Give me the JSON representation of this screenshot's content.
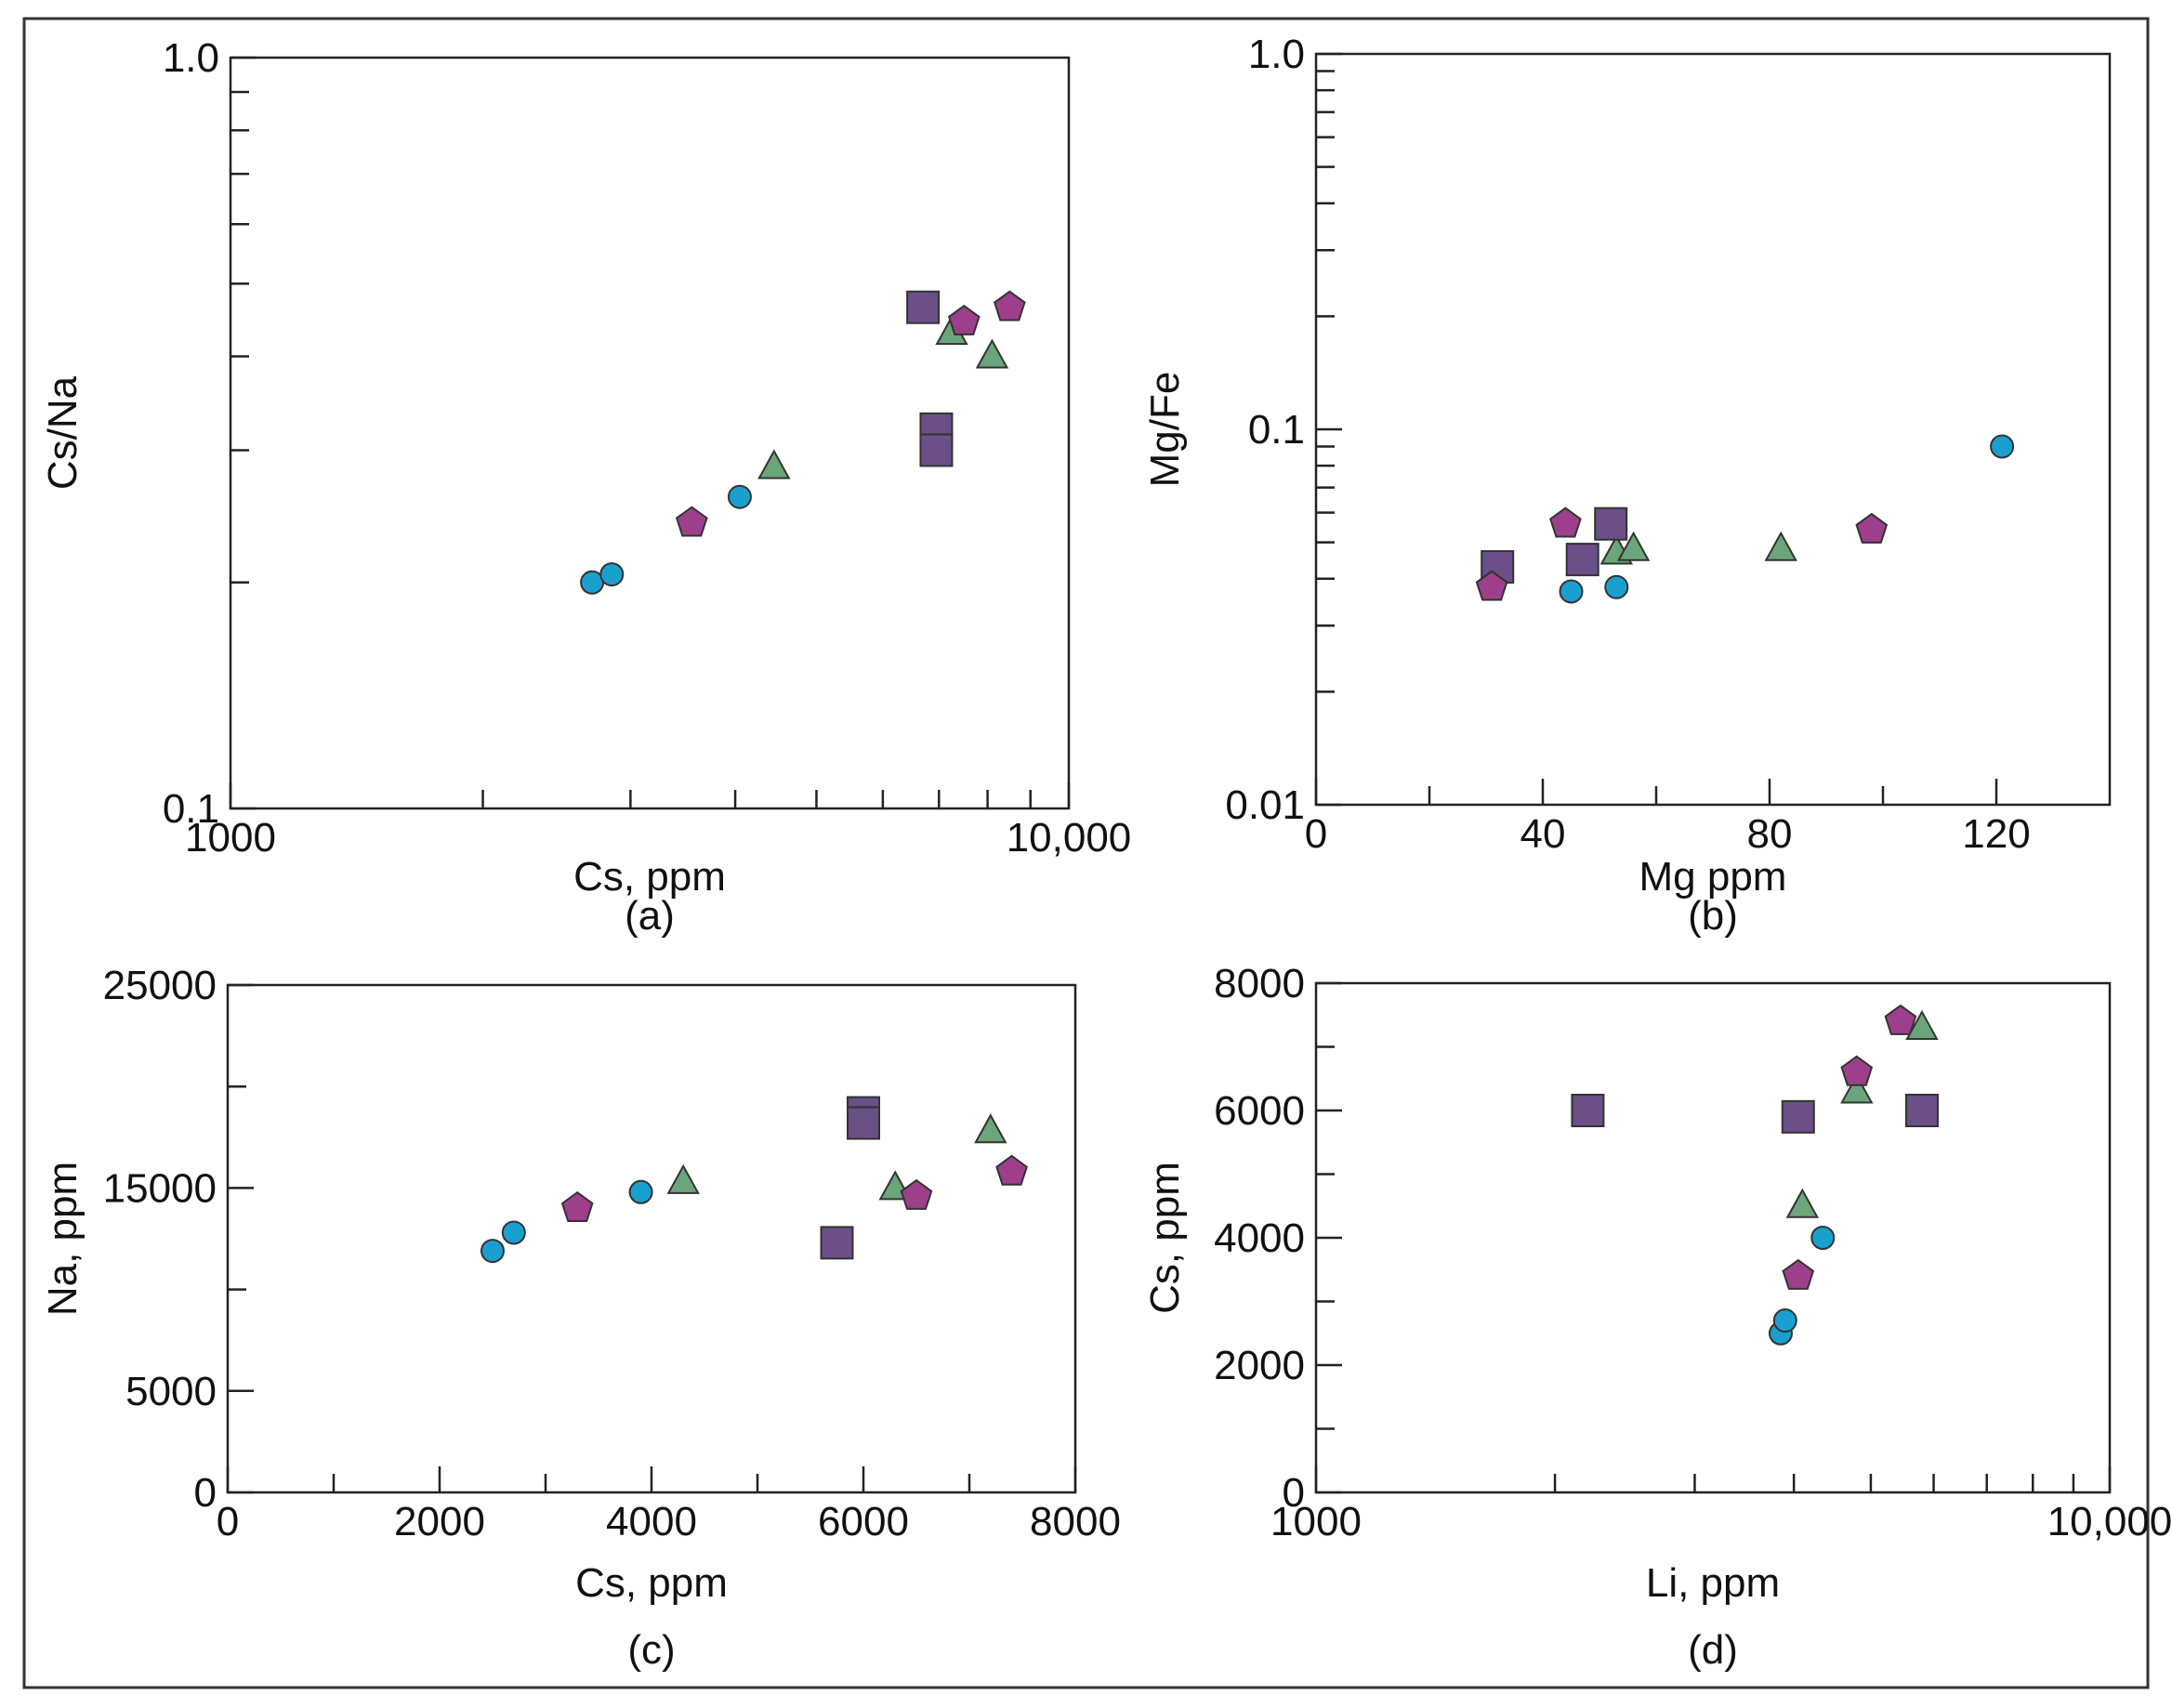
{
  "figure": {
    "frame": true
  },
  "colors": {
    "circle": "#1aa0cf",
    "triangle": "#6aa679",
    "square": "#6b4f87",
    "pentagon": "#9e3f8c"
  },
  "chart_data": [
    {
      "id": "a",
      "type": "scatter",
      "panel_label": "(a)",
      "xlabel": "Cs, ppm",
      "ylabel": "Cs/Na",
      "xscale": "log",
      "yscale": "log",
      "xlim": [
        1000,
        10000
      ],
      "ylim": [
        0.1,
        1.0
      ],
      "xticks": [
        {
          "value": 1000,
          "label": "1000"
        },
        {
          "value": 10000,
          "label": "10,000"
        }
      ],
      "yticks": [
        {
          "value": 0.1,
          "label": "0.1"
        },
        {
          "value": 1.0,
          "label": "1.0"
        }
      ],
      "series": [
        {
          "name": "circle",
          "marker": "circle",
          "points": [
            [
              2700,
              0.2
            ],
            [
              2850,
              0.205
            ],
            [
              4050,
              0.26
            ]
          ]
        },
        {
          "name": "triangle",
          "marker": "triangle",
          "points": [
            [
              4450,
              0.285
            ],
            [
              7250,
              0.43
            ],
            [
              8100,
              0.4
            ]
          ]
        },
        {
          "name": "square",
          "marker": "square",
          "points": [
            [
              6700,
              0.465
            ],
            [
              6950,
              0.32
            ],
            [
              6950,
              0.3
            ]
          ]
        },
        {
          "name": "pentagon",
          "marker": "pentagon",
          "points": [
            [
              3550,
              0.24
            ],
            [
              7500,
              0.445
            ],
            [
              8500,
              0.465
            ]
          ]
        }
      ]
    },
    {
      "id": "b",
      "type": "scatter",
      "panel_label": "(b)",
      "xlabel": "Mg ppm",
      "ylabel": "Mg/Fe",
      "xscale": "linear",
      "yscale": "log",
      "xlim": [
        0,
        140
      ],
      "ylim": [
        0.01,
        1.0
      ],
      "xticks": [
        {
          "value": 0,
          "label": "0"
        },
        {
          "value": 40,
          "label": "40"
        },
        {
          "value": 80,
          "label": "80"
        },
        {
          "value": 120,
          "label": "120"
        }
      ],
      "yticks": [
        {
          "value": 0.01,
          "label": "0.01"
        },
        {
          "value": 0.1,
          "label": "0.1"
        },
        {
          "value": 1.0,
          "label": "1.0"
        }
      ],
      "series": [
        {
          "name": "circle",
          "marker": "circle",
          "points": [
            [
              45,
              0.037
            ],
            [
              53,
              0.038
            ],
            [
              121,
              0.09
            ]
          ]
        },
        {
          "name": "triangle",
          "marker": "triangle",
          "points": [
            [
              53,
              0.047
            ],
            [
              56,
              0.048
            ],
            [
              82,
              0.048
            ]
          ]
        },
        {
          "name": "square",
          "marker": "square",
          "points": [
            [
              32,
              0.043
            ],
            [
              47,
              0.045
            ],
            [
              52,
              0.056
            ]
          ]
        },
        {
          "name": "pentagon",
          "marker": "pentagon",
          "points": [
            [
              31,
              0.038
            ],
            [
              44,
              0.056
            ],
            [
              98,
              0.054
            ]
          ]
        }
      ]
    },
    {
      "id": "c",
      "type": "scatter",
      "panel_label": "(c)",
      "xlabel": "Cs, ppm",
      "ylabel": "Na, ppm",
      "xscale": "linear",
      "yscale": "linear",
      "xlim": [
        0,
        8000
      ],
      "ylim": [
        0,
        25000
      ],
      "xticks": [
        {
          "value": 0,
          "label": "0"
        },
        {
          "value": 2000,
          "label": "2000"
        },
        {
          "value": 4000,
          "label": "4000"
        },
        {
          "value": 6000,
          "label": "6000"
        },
        {
          "value": 8000,
          "label": "8000"
        }
      ],
      "yticks": [
        {
          "value": 0,
          "label": "0"
        },
        {
          "value": 5000,
          "label": "5000"
        },
        {
          "value": 15000,
          "label": "15000"
        },
        {
          "value": 25000,
          "label": "25000"
        }
      ],
      "series": [
        {
          "name": "circle",
          "marker": "circle",
          "points": [
            [
              2500,
              11900
            ],
            [
              2700,
              12800
            ],
            [
              3900,
              14800
            ]
          ]
        },
        {
          "name": "triangle",
          "marker": "triangle",
          "points": [
            [
              4300,
              15300
            ],
            [
              6300,
              15000
            ],
            [
              7200,
              17800
            ]
          ]
        },
        {
          "name": "square",
          "marker": "square",
          "points": [
            [
              5750,
              12300
            ],
            [
              6000,
              18700
            ],
            [
              6000,
              18200
            ]
          ]
        },
        {
          "name": "pentagon",
          "marker": "pentagon",
          "points": [
            [
              3300,
              14000
            ],
            [
              6500,
              14600
            ],
            [
              7400,
              15800
            ]
          ]
        }
      ]
    },
    {
      "id": "d",
      "type": "scatter",
      "panel_label": "(d)",
      "xlabel": "Li, ppm",
      "ylabel": "Cs, ppm",
      "xscale": "log",
      "yscale": "linear",
      "xlim": [
        1000,
        10000
      ],
      "ylim": [
        0,
        8000
      ],
      "xticks": [
        {
          "value": 1000,
          "label": "1000"
        },
        {
          "value": 10000,
          "label": "10,000"
        }
      ],
      "yticks": [
        {
          "value": 0,
          "label": "0"
        },
        {
          "value": 2000,
          "label": "2000"
        },
        {
          "value": 4000,
          "label": "4000"
        },
        {
          "value": 6000,
          "label": "6000"
        },
        {
          "value": 8000,
          "label": "8000"
        }
      ],
      "series": [
        {
          "name": "circle",
          "marker": "circle",
          "points": [
            [
              3850,
              2500
            ],
            [
              3900,
              2700
            ],
            [
              4350,
              4000
            ]
          ]
        },
        {
          "name": "triangle",
          "marker": "triangle",
          "points": [
            [
              4100,
              4500
            ],
            [
              4800,
              6300
            ],
            [
              5800,
              7300
            ]
          ]
        },
        {
          "name": "square",
          "marker": "square",
          "points": [
            [
              2200,
              6000
            ],
            [
              4050,
              5900
            ],
            [
              5800,
              6000
            ]
          ]
        },
        {
          "name": "pentagon",
          "marker": "pentagon",
          "points": [
            [
              4050,
              3400
            ],
            [
              4800,
              6600
            ],
            [
              5450,
              7400
            ]
          ]
        }
      ]
    }
  ]
}
